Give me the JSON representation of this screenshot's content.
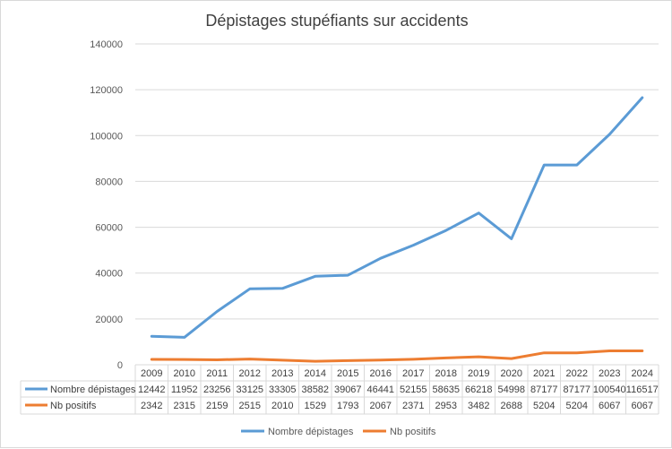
{
  "chart_data": {
    "type": "line",
    "title": "Dépistages   stupéfiants sur accidents",
    "categories": [
      "2009",
      "2010",
      "2011",
      "2012",
      "2013",
      "2014",
      "2015",
      "2016",
      "2017",
      "2018",
      "2019",
      "2020",
      "2021",
      "2022",
      "2023",
      "2024"
    ],
    "ylim": [
      0,
      140000
    ],
    "yticks": [
      "0",
      "20000",
      "40000",
      "60000",
      "80000",
      "100000",
      "120000",
      "140000"
    ],
    "grid": true,
    "data_table": true,
    "legend_position": "bottom",
    "series": [
      {
        "name": "Nombre dépistages",
        "color": "#5b9bd5",
        "values": [
          12442,
          11952,
          23256,
          33125,
          33305,
          38582,
          39067,
          46441,
          52155,
          58635,
          66218,
          54998,
          87177,
          87177,
          100540,
          116517
        ]
      },
      {
        "name": "Nb positifs",
        "color": "#ed7d31",
        "values": [
          2342,
          2315,
          2159,
          2515,
          2010,
          1529,
          1793,
          2067,
          2371,
          2953,
          3482,
          2688,
          5204,
          5204,
          6067,
          6067
        ]
      }
    ]
  }
}
